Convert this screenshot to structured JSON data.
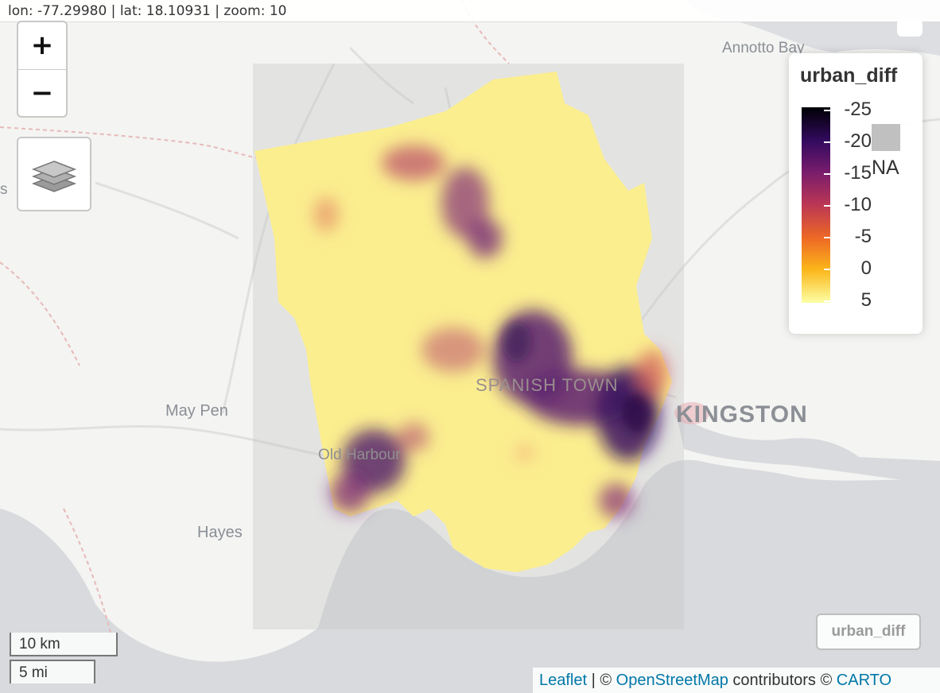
{
  "coords": {
    "text": "lon: -77.29980 | lat: 18.10931 | zoom: 10"
  },
  "zoom": {
    "in_label": "+",
    "out_label": "−"
  },
  "places": {
    "annotto_bay": "Annotto Bay",
    "may_pen": "May Pen",
    "old_harbour": "Old Harbour",
    "hayes": "Hayes",
    "spanish_town": "SPANISH TOWN",
    "kingston": "KINGSTON",
    "cut_left": "s"
  },
  "legend": {
    "title": "urban_diff",
    "ticks": [
      "-25",
      "-20",
      "-15",
      "-10",
      "-5",
      "0",
      "5"
    ],
    "na_label": "NA",
    "na_color": "#c0c0c0",
    "palette": [
      "#000004",
      "#320a5e",
      "#781c6d",
      "#bc3754",
      "#ed6925",
      "#fbb61a",
      "#fcffa4"
    ]
  },
  "layer_toggle": {
    "label": "urban_diff"
  },
  "scale": {
    "km": "10 km",
    "mi": "5 mi"
  },
  "attribution": {
    "leaflet": "Leaflet",
    "sep1": " | © ",
    "osm": "OpenStreetMap",
    "mid": " contributors © ",
    "carto": "CARTO"
  },
  "colors": {
    "land": "#f4f4f2",
    "water": "#d8dadd",
    "raster_base": "#fbee8f",
    "extent_box": "#bdbdbd"
  }
}
